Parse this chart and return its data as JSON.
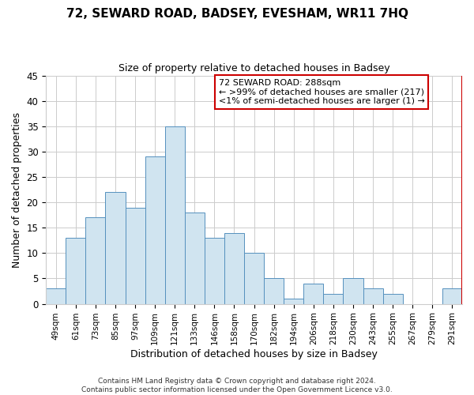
{
  "title": "72, SEWARD ROAD, BADSEY, EVESHAM, WR11 7HQ",
  "subtitle": "Size of property relative to detached houses in Badsey",
  "xlabel": "Distribution of detached houses by size in Badsey",
  "ylabel": "Number of detached properties",
  "bar_labels": [
    "49sqm",
    "61sqm",
    "73sqm",
    "85sqm",
    "97sqm",
    "109sqm",
    "121sqm",
    "133sqm",
    "146sqm",
    "158sqm",
    "170sqm",
    "182sqm",
    "194sqm",
    "206sqm",
    "218sqm",
    "230sqm",
    "243sqm",
    "255sqm",
    "267sqm",
    "279sqm",
    "291sqm"
  ],
  "bar_values": [
    3,
    13,
    17,
    22,
    19,
    29,
    35,
    18,
    13,
    14,
    10,
    5,
    1,
    4,
    2,
    5,
    3,
    2,
    0,
    0,
    3
  ],
  "bar_color": "#d0e4f0",
  "bar_edge_color": "#5590be",
  "ylim": [
    0,
    45
  ],
  "yticks": [
    0,
    5,
    10,
    15,
    20,
    25,
    30,
    35,
    40,
    45
  ],
  "annotation_title": "72 SEWARD ROAD: 288sqm",
  "annotation_line1": "← >99% of detached houses are smaller (217)",
  "annotation_line2": "<1% of semi-detached houses are larger (1) →",
  "annotation_box_color": "#ffffff",
  "annotation_border_color": "#cc0000",
  "footer1": "Contains HM Land Registry data © Crown copyright and database right 2024.",
  "footer2": "Contains public sector information licensed under the Open Government Licence v3.0.",
  "background_color": "#ffffff",
  "grid_color": "#cccccc",
  "red_line_color": "#cc0000"
}
